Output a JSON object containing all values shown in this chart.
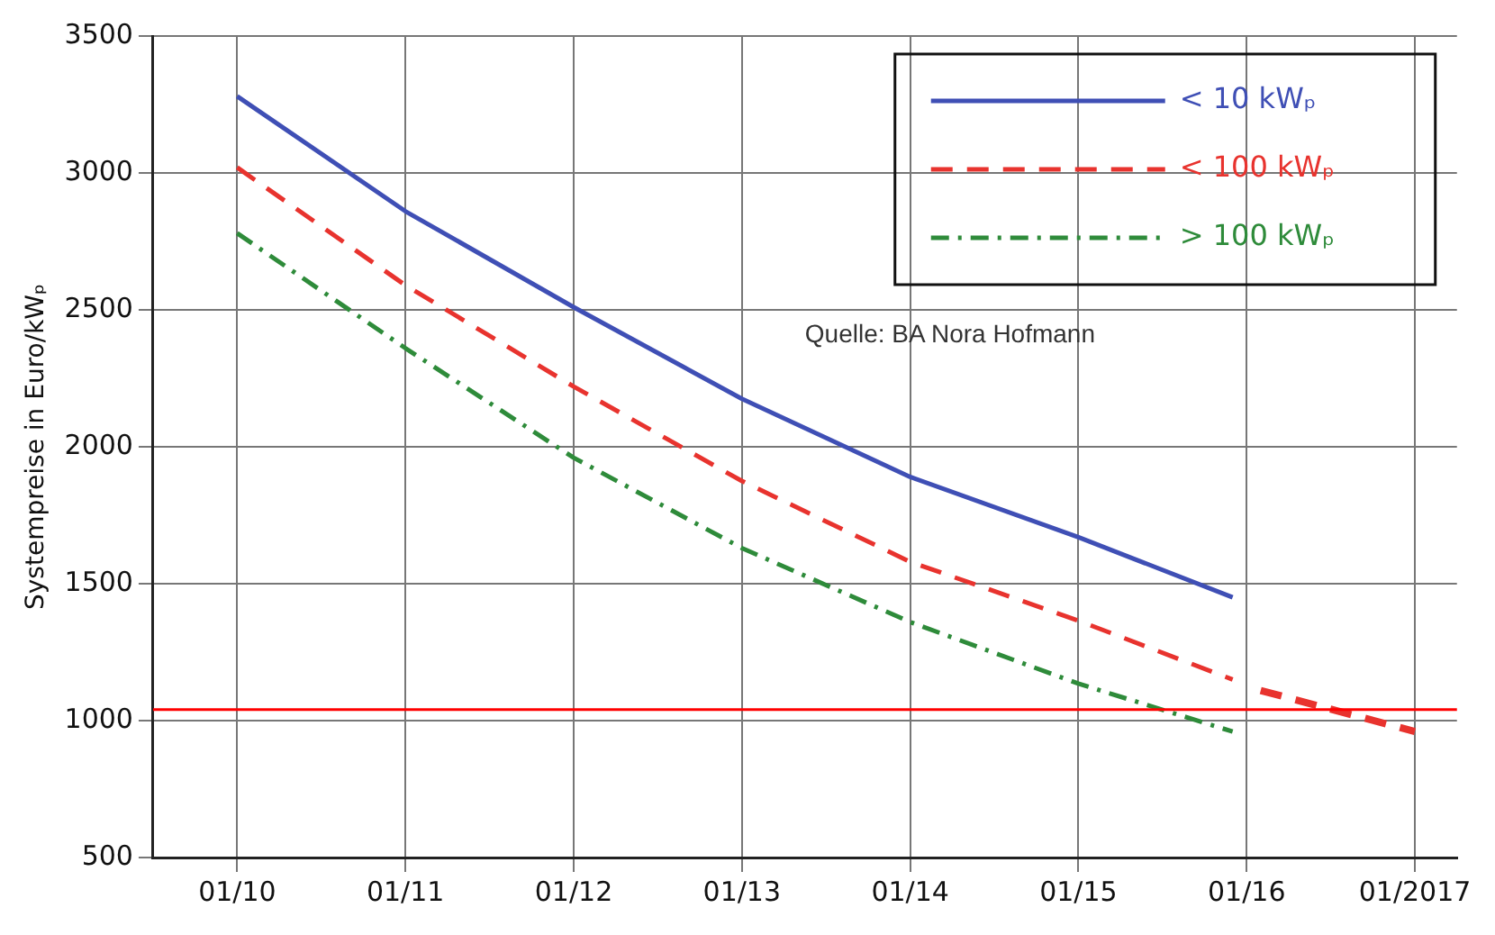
{
  "chart_data": {
    "type": "line",
    "ylabel": "Systempreise in Euro/kWₚ",
    "xlim": [
      "2009-07",
      "2017-04"
    ],
    "xticks": [
      {
        "value": "2010-01",
        "label": "01/10"
      },
      {
        "value": "2011-01",
        "label": "01/11"
      },
      {
        "value": "2012-01",
        "label": "01/12"
      },
      {
        "value": "2013-01",
        "label": "01/13"
      },
      {
        "value": "2014-01",
        "label": "01/14"
      },
      {
        "value": "2015-01",
        "label": "01/15"
      },
      {
        "value": "2016-01",
        "label": "01/16"
      },
      {
        "value": "2017-01",
        "label": "01/2017"
      }
    ],
    "ylim": [
      500,
      3500
    ],
    "yticks": [
      500,
      1000,
      1500,
      2000,
      2500,
      3000,
      3500
    ],
    "grid": true,
    "legend": "top right",
    "marker": "none",
    "series": [
      {
        "name": "< 10 kWₚ",
        "color": "#3f4fb5",
        "line_style": "solid",
        "x": [
          "2010-01",
          "2011-01",
          "2012-01",
          "2013-01",
          "2014-01",
          "2015-01",
          "2015-12"
        ],
        "values": [
          3280,
          2860,
          2510,
          2175,
          1890,
          1670,
          1450
        ]
      },
      {
        "name": "< 100 kWₚ",
        "color": "#e8332e",
        "line_style": "dashed",
        "x": [
          "2010-01",
          "2011-01",
          "2012-01",
          "2013-01",
          "2014-01",
          "2015-01",
          "2015-12"
        ],
        "values": [
          3020,
          2590,
          2220,
          1875,
          1580,
          1365,
          1150
        ]
      },
      {
        "name": "> 100 kWₚ",
        "color": "#2e8b3a",
        "line_style": "dashdot",
        "x": [
          "2010-01",
          "2011-01",
          "2012-01",
          "2013-01",
          "2014-01",
          "2015-01",
          "2015-12"
        ],
        "values": [
          2780,
          2360,
          1960,
          1630,
          1360,
          1135,
          960
        ]
      },
      {
        "color": "#e8332e",
        "line_style": "dashed",
        "x": [
          "2016-02",
          "2017-01"
        ],
        "values": [
          1110,
          960
        ]
      }
    ],
    "ref_lines": [
      {
        "axis": "y",
        "value": 1040,
        "color": "#ff0000",
        "line_style": "solid"
      }
    ],
    "annotations": [
      "Quelle: BA Nora Hofmann"
    ]
  }
}
